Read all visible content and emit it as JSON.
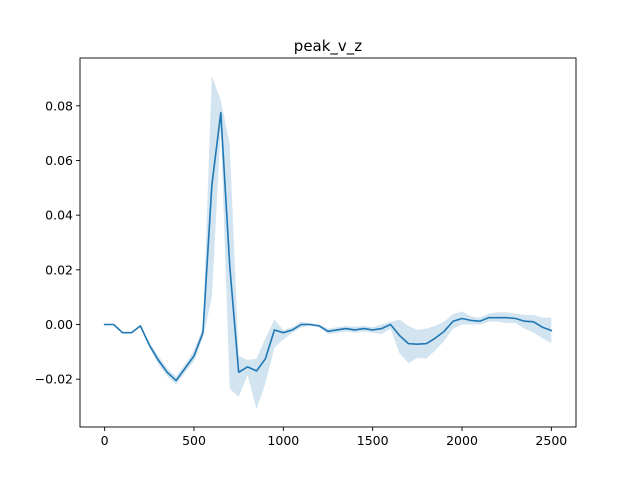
{
  "chart_data": {
    "type": "line",
    "title": "peak_v_z",
    "xlabel": "",
    "ylabel": "",
    "xlim": [
      -138,
      2638
    ],
    "ylim": [
      -0.0375,
      0.0975
    ],
    "x_ticks": [
      0,
      500,
      1000,
      1500,
      2000,
      2500
    ],
    "x_tick_labels": [
      "0",
      "500",
      "1000",
      "1500",
      "2000",
      "2500"
    ],
    "y_ticks": [
      -0.02,
      0.0,
      0.02,
      0.04,
      0.06,
      0.08
    ],
    "y_tick_labels": [
      "−0.02",
      "0.00",
      "0.02",
      "0.04",
      "0.06",
      "0.08"
    ],
    "grid": false,
    "legend": "none",
    "colors": {
      "line": "#1f77b4",
      "band": "#1f77b4"
    },
    "x": [
      0,
      50,
      100,
      150,
      200,
      250,
      300,
      350,
      400,
      450,
      500,
      550,
      600,
      650,
      700,
      750,
      800,
      850,
      900,
      950,
      1000,
      1050,
      1100,
      1150,
      1200,
      1250,
      1300,
      1350,
      1400,
      1450,
      1500,
      1550,
      1600,
      1650,
      1700,
      1750,
      1800,
      1850,
      1900,
      1950,
      2000,
      2050,
      2100,
      2150,
      2200,
      2250,
      2300,
      2350,
      2400,
      2450,
      2500
    ],
    "mean": [
      0.0,
      0.0,
      -0.003,
      -0.003,
      -0.0005,
      -0.0075,
      -0.013,
      -0.0175,
      -0.0205,
      -0.016,
      -0.0115,
      -0.003,
      0.051,
      0.0775,
      0.0215,
      -0.0175,
      -0.0155,
      -0.017,
      -0.0125,
      -0.002,
      -0.003,
      -0.002,
      0.0,
      0.0,
      -0.0005,
      -0.0025,
      -0.002,
      -0.0015,
      -0.002,
      -0.0015,
      -0.002,
      -0.0015,
      0.0,
      -0.004,
      -0.007,
      -0.0072,
      -0.007,
      -0.005,
      -0.0025,
      0.0012,
      0.0022,
      0.0015,
      0.0012,
      0.0025,
      0.0025,
      0.0025,
      0.0022,
      0.0012,
      0.001,
      -0.001,
      -0.0022
    ],
    "upper": [
      0.0,
      0.0,
      -0.003,
      -0.003,
      -0.0005,
      -0.0065,
      -0.0115,
      -0.016,
      -0.019,
      -0.0145,
      -0.0095,
      -0.001,
      0.091,
      0.082,
      0.066,
      -0.0115,
      -0.013,
      -0.0125,
      -0.005,
      0.0018,
      -0.002,
      -0.001,
      0.001,
      0.0005,
      0.0,
      -0.0015,
      -0.001,
      -0.0005,
      -0.0008,
      -0.0005,
      -0.001,
      0.0,
      0.001,
      0.0018,
      -0.0005,
      -0.002,
      -0.0015,
      -0.0005,
      0.001,
      0.0038,
      0.0048,
      0.003,
      0.0025,
      0.004,
      0.0045,
      0.0045,
      0.004,
      0.0035,
      0.0035,
      0.0025,
      0.0025
    ],
    "lower": [
      0.0,
      0.0,
      -0.003,
      -0.003,
      -0.0005,
      -0.0085,
      -0.0145,
      -0.019,
      -0.022,
      -0.0175,
      -0.0135,
      -0.005,
      0.01,
      0.072,
      -0.0235,
      -0.0265,
      -0.0185,
      -0.031,
      -0.0215,
      -0.0085,
      -0.0055,
      -0.003,
      -0.001,
      -0.0005,
      -0.001,
      -0.0035,
      -0.003,
      -0.0025,
      -0.003,
      -0.0025,
      -0.003,
      -0.0035,
      -0.0015,
      -0.0105,
      -0.0142,
      -0.0122,
      -0.0125,
      -0.0095,
      -0.006,
      -0.0015,
      0.0,
      0.0,
      0.0,
      0.001,
      0.001,
      0.0005,
      0.0005,
      -0.0015,
      -0.003,
      -0.005,
      -0.0068
    ]
  }
}
